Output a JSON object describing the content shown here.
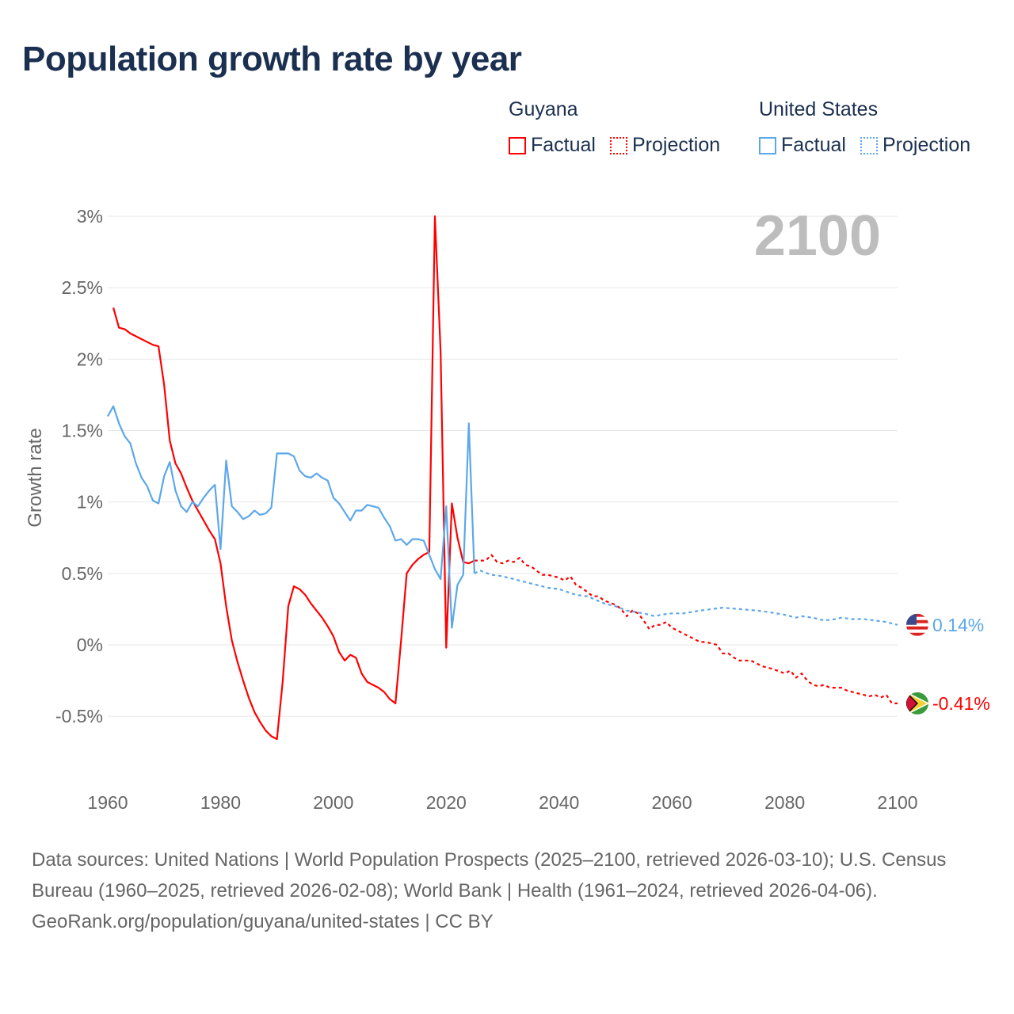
{
  "title": "Population growth rate by year",
  "legend": [
    {
      "group": "Guyana",
      "color": "#ff0000",
      "items": [
        "Factual",
        "Projection"
      ]
    },
    {
      "group": "United States",
      "color": "#5ca7ea",
      "items": [
        "Factual",
        "Projection"
      ]
    }
  ],
  "footer": {
    "sources": "Data sources: United Nations | World Population Prospects (2025–2100, retrieved 2026-03-10); U.S. Census Bureau (1960–2025, retrieved 2026-02-08); World Bank | Health (1961–2024, retrieved 2026-04-06).",
    "credit": "GeoRank.org/population/guyana/united-states | CC BY"
  },
  "chart_data": {
    "type": "line",
    "title": "Population growth rate by year",
    "ylabel": "Growth rate",
    "xlabel": "",
    "xlim": [
      1960,
      2100
    ],
    "ylim": [
      -0.75,
      3.0
    ],
    "x_ticks": [
      "1960",
      "1980",
      "2000",
      "2020",
      "2040",
      "2060",
      "2080",
      "2100"
    ],
    "x_tick_values": [
      1960,
      1980,
      2000,
      2020,
      2040,
      2060,
      2080,
      2100
    ],
    "y_ticks": [
      "-0.5%",
      "0%",
      "0.5%",
      "1%",
      "1.5%",
      "2%",
      "2.5%",
      "3%"
    ],
    "y_tick_values": [
      -0.5,
      0,
      0.5,
      1,
      1.5,
      2,
      2.5,
      3
    ],
    "grid": true,
    "current_year_label": "2100",
    "series": [
      {
        "name": "Guyana",
        "kind": "Factual",
        "color": "#ff0000",
        "x": [
          1961,
          1962,
          1963,
          1964,
          1965,
          1966,
          1967,
          1968,
          1969,
          1970,
          1971,
          1972,
          1973,
          1974,
          1975,
          1976,
          1977,
          1978,
          1979,
          1980,
          1981,
          1982,
          1983,
          1984,
          1985,
          1986,
          1987,
          1988,
          1989,
          1990,
          1991,
          1992,
          1993,
          1994,
          1995,
          1996,
          1997,
          1998,
          1999,
          2000,
          2001,
          2002,
          2003,
          2004,
          2005,
          2006,
          2007,
          2008,
          2009,
          2010,
          2011,
          2012,
          2013,
          2014,
          2015,
          2016,
          2017,
          2018,
          2019,
          2020,
          2021,
          2022,
          2023,
          2024,
          2025
        ],
        "y": [
          2.36,
          2.22,
          2.21,
          2.18,
          2.16,
          2.14,
          2.12,
          2.1,
          2.09,
          1.82,
          1.43,
          1.27,
          1.2,
          1.1,
          1.01,
          0.94,
          0.87,
          0.8,
          0.74,
          0.57,
          0.27,
          0.03,
          -0.12,
          -0.25,
          -0.37,
          -0.47,
          -0.54,
          -0.6,
          -0.64,
          -0.66,
          -0.26,
          0.27,
          0.41,
          0.39,
          0.35,
          0.29,
          0.24,
          0.19,
          0.13,
          0.06,
          -0.05,
          -0.11,
          -0.07,
          -0.09,
          -0.2,
          -0.26,
          -0.28,
          -0.3,
          -0.33,
          -0.38,
          -0.41,
          0.03,
          0.5,
          0.56,
          0.6,
          0.63,
          0.65,
          3.0,
          2.05,
          -0.02,
          0.99,
          0.75,
          0.58,
          0.57,
          0.59
        ]
      },
      {
        "name": "Guyana",
        "kind": "Projection",
        "color": "#ff0000",
        "x": [
          2025,
          2026,
          2027,
          2028,
          2029,
          2030,
          2031,
          2032,
          2033,
          2034,
          2035,
          2036,
          2037,
          2038,
          2040,
          2041,
          2042,
          2043,
          2044,
          2045,
          2046,
          2047,
          2048,
          2050,
          2051,
          2052,
          2053,
          2054,
          2055,
          2056,
          2057,
          2058,
          2059,
          2060,
          2062,
          2064,
          2065,
          2066,
          2068,
          2069,
          2070,
          2071,
          2072,
          2073,
          2074,
          2075,
          2076,
          2078,
          2080,
          2081,
          2082,
          2083,
          2084,
          2085,
          2086,
          2087,
          2088,
          2090,
          2091,
          2092,
          2094,
          2095,
          2096,
          2097,
          2098,
          2099,
          2100
        ],
        "y": [
          0.59,
          0.59,
          0.59,
          0.63,
          0.58,
          0.57,
          0.59,
          0.58,
          0.61,
          0.56,
          0.55,
          0.52,
          0.49,
          0.49,
          0.47,
          0.45,
          0.48,
          0.42,
          0.4,
          0.37,
          0.34,
          0.34,
          0.31,
          0.28,
          0.25,
          0.2,
          0.24,
          0.22,
          0.17,
          0.11,
          0.14,
          0.14,
          0.16,
          0.12,
          0.08,
          0.04,
          0.02,
          0.02,
          0.0,
          -0.06,
          -0.06,
          -0.09,
          -0.11,
          -0.11,
          -0.11,
          -0.13,
          -0.15,
          -0.17,
          -0.2,
          -0.18,
          -0.23,
          -0.2,
          -0.25,
          -0.28,
          -0.29,
          -0.28,
          -0.3,
          -0.3,
          -0.32,
          -0.33,
          -0.35,
          -0.36,
          -0.35,
          -0.37,
          -0.35,
          -0.41,
          -0.41
        ]
      },
      {
        "name": "United States",
        "kind": "Factual",
        "color": "#5ca7ea",
        "x": [
          1960,
          1961,
          1962,
          1963,
          1964,
          1965,
          1966,
          1967,
          1968,
          1969,
          1970,
          1971,
          1972,
          1973,
          1974,
          1975,
          1976,
          1977,
          1978,
          1979,
          1980,
          1981,
          1982,
          1983,
          1984,
          1985,
          1986,
          1987,
          1988,
          1989,
          1990,
          1991,
          1992,
          1993,
          1994,
          1995,
          1996,
          1997,
          1998,
          1999,
          2000,
          2001,
          2002,
          2003,
          2004,
          2005,
          2006,
          2007,
          2008,
          2009,
          2010,
          2011,
          2012,
          2013,
          2014,
          2015,
          2016,
          2017,
          2018,
          2019,
          2020,
          2021,
          2022,
          2023,
          2024,
          2025
        ],
        "y": [
          1.6,
          1.67,
          1.55,
          1.46,
          1.41,
          1.27,
          1.17,
          1.11,
          1.01,
          0.99,
          1.18,
          1.28,
          1.08,
          0.97,
          0.93,
          1.0,
          0.97,
          1.03,
          1.08,
          1.12,
          0.67,
          1.29,
          0.97,
          0.93,
          0.88,
          0.9,
          0.94,
          0.91,
          0.92,
          0.96,
          1.34,
          1.34,
          1.34,
          1.32,
          1.22,
          1.18,
          1.17,
          1.2,
          1.17,
          1.15,
          1.03,
          0.99,
          0.93,
          0.87,
          0.94,
          0.94,
          0.98,
          0.97,
          0.96,
          0.89,
          0.83,
          0.73,
          0.74,
          0.7,
          0.74,
          0.74,
          0.73,
          0.63,
          0.53,
          0.46,
          0.97,
          0.12,
          0.42,
          0.49,
          1.55,
          0.5
        ]
      },
      {
        "name": "United States",
        "kind": "Projection",
        "color": "#5ca7ea",
        "x": [
          2025,
          2026,
          2028,
          2030,
          2033,
          2035,
          2038,
          2040,
          2043,
          2045,
          2048,
          2050,
          2052,
          2055,
          2057,
          2058,
          2060,
          2062,
          2065,
          2067,
          2069,
          2072,
          2075,
          2077,
          2080,
          2082,
          2083,
          2085,
          2087,
          2089,
          2090,
          2092,
          2094,
          2096,
          2098,
          2100
        ],
        "y": [
          0.5,
          0.52,
          0.49,
          0.48,
          0.45,
          0.43,
          0.4,
          0.39,
          0.35,
          0.34,
          0.29,
          0.27,
          0.24,
          0.22,
          0.2,
          0.21,
          0.22,
          0.22,
          0.24,
          0.25,
          0.26,
          0.25,
          0.24,
          0.23,
          0.21,
          0.19,
          0.2,
          0.19,
          0.17,
          0.18,
          0.19,
          0.18,
          0.18,
          0.17,
          0.16,
          0.14
        ]
      }
    ],
    "end_labels": [
      {
        "country": "United States",
        "value": "0.14%",
        "flag": "us-flag"
      },
      {
        "country": "Guyana",
        "value": "-0.41%",
        "flag": "guyana-flag"
      }
    ]
  }
}
